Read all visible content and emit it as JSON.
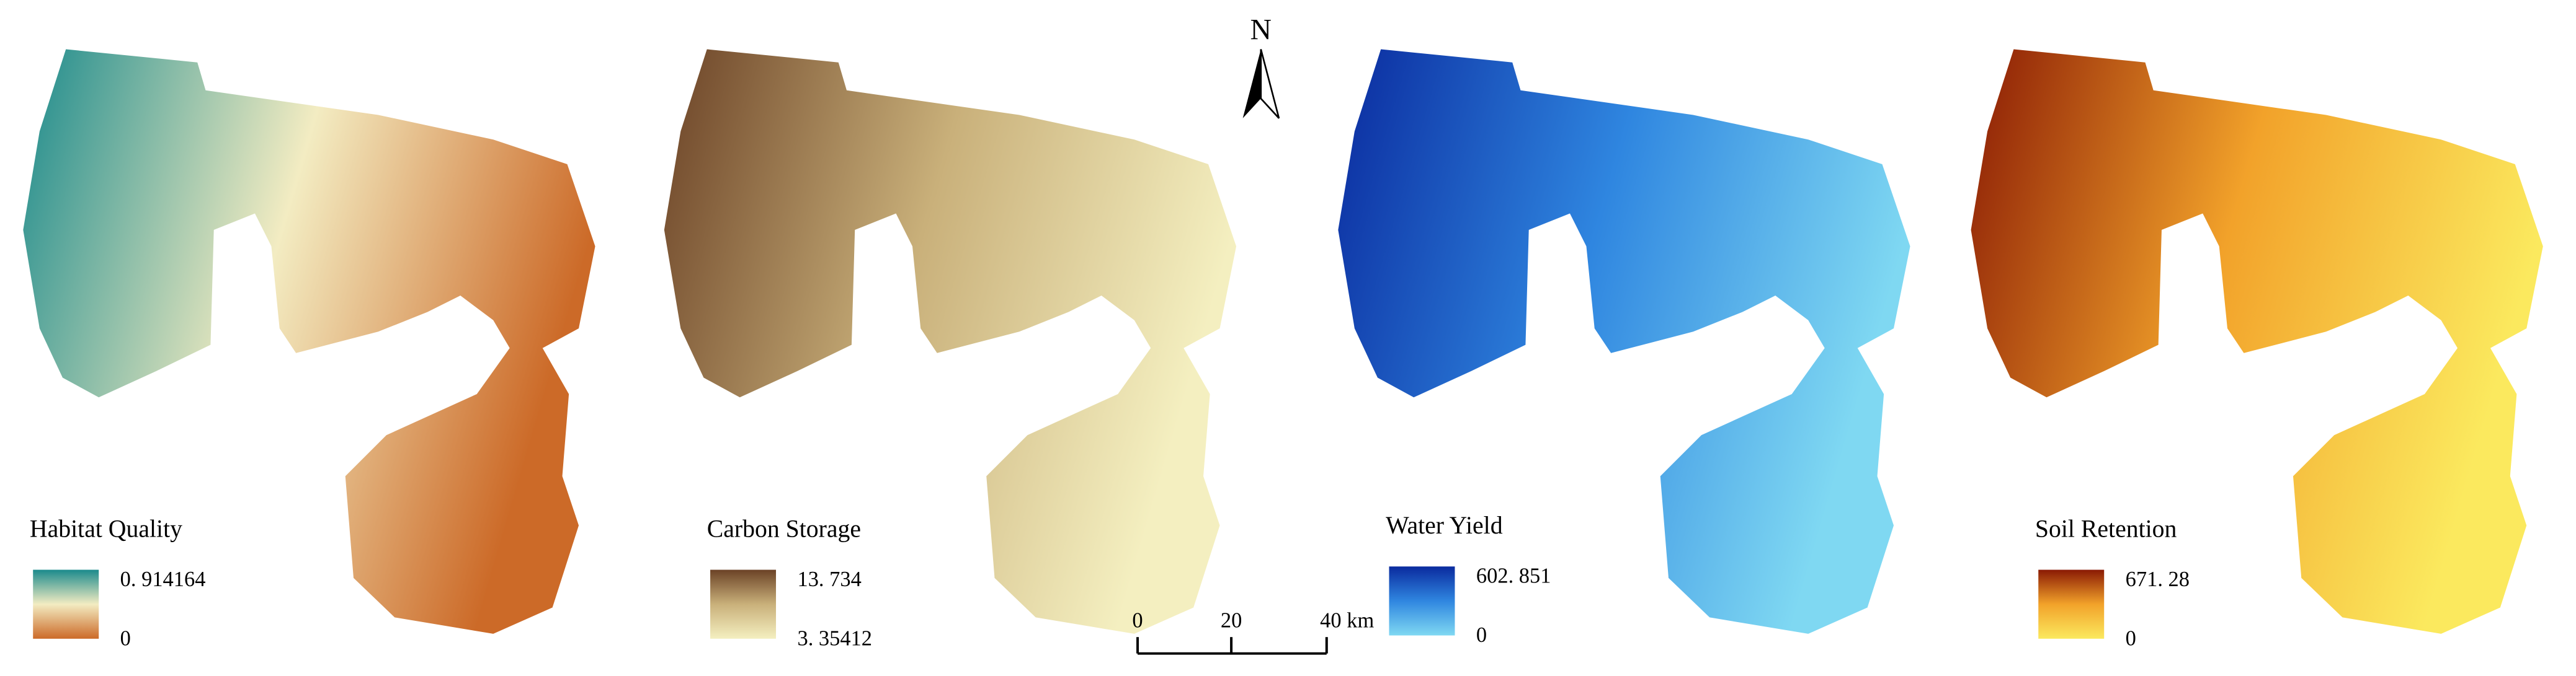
{
  "panels": [
    {
      "title": "Habitat Quality",
      "max_label": "0. 914164",
      "min_label": "0",
      "colors": [
        "#1b8a8c",
        "#f3ecc2",
        "#cc6a28"
      ]
    },
    {
      "title": "Carbon Storage",
      "max_label": "13. 734",
      "min_label": "3. 35412",
      "colors": [
        "#6b4226",
        "#c9b07a",
        "#f4efc0"
      ]
    },
    {
      "title": "Water Yield",
      "max_label": "602. 851",
      "min_label": "0",
      "colors": [
        "#0a2a9e",
        "#2f86e0",
        "#7fd8f2"
      ]
    },
    {
      "title": "Soil Retention",
      "max_label": "671. 28",
      "min_label": "0",
      "colors": [
        "#8a1a04",
        "#f2a22a",
        "#fbe95e"
      ]
    }
  ],
  "north": "N",
  "scale_bar": {
    "labels": [
      "0",
      "20",
      "40 km"
    ]
  }
}
